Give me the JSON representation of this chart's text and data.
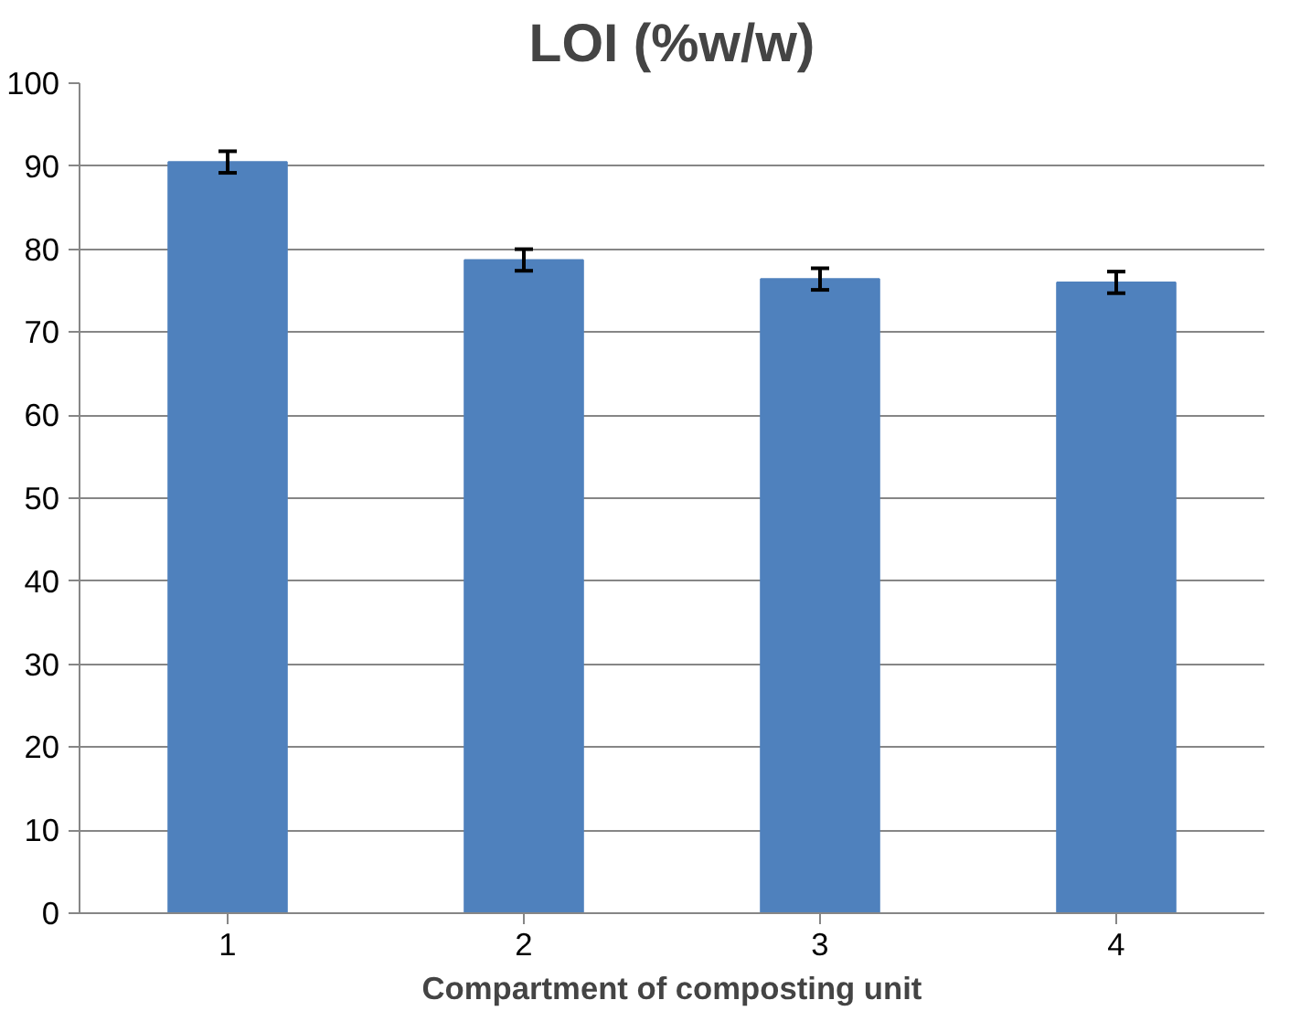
{
  "chart_data": {
    "type": "bar",
    "title": "LOI (%w/w)",
    "xlabel": "Compartment of composting unit",
    "categories": [
      "1",
      "2",
      "3",
      "4"
    ],
    "values": [
      90.5,
      78.7,
      76.4,
      76.0
    ],
    "errors": [
      1.3,
      1.3,
      1.3,
      1.3
    ],
    "color": "#4f81bd",
    "ylim": [
      0,
      100
    ],
    "yticks": [
      0,
      10,
      20,
      30,
      40,
      50,
      60,
      70,
      80,
      90,
      100
    ],
    "grid": "y"
  }
}
